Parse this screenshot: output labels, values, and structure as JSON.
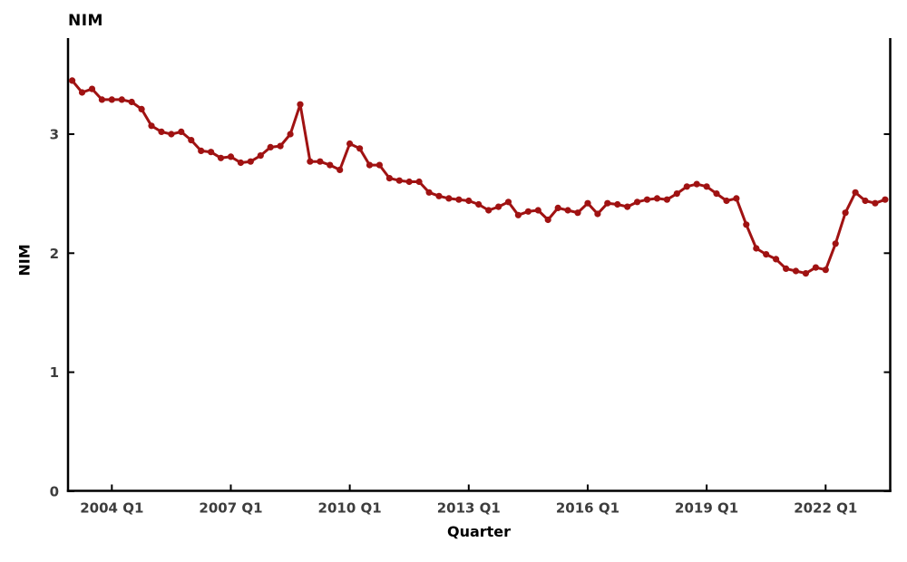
{
  "chart": {
    "title": "NIM",
    "xlabel": "Quarter",
    "ylabel": "NIM"
  },
  "chart_data": {
    "type": "line",
    "title": "NIM",
    "xlabel": "Quarter",
    "ylabel": "NIM",
    "legend": "none",
    "grid": false,
    "line_color": "#a01212",
    "marker": "circle",
    "axis_color": "#000000",
    "tick_label_color": "#3d3d3d",
    "ylim": [
      0,
      3.8
    ],
    "yticks": [
      0,
      1,
      2,
      3
    ],
    "x_tick_labels": [
      "2004 Q1",
      "2007 Q1",
      "2010 Q1",
      "2013 Q1",
      "2016 Q1",
      "2019 Q1",
      "2022 Q1"
    ],
    "x_tick_indices": [
      4,
      16,
      28,
      40,
      52,
      64,
      76
    ],
    "categories": [
      "2003 Q1",
      "2003 Q2",
      "2003 Q3",
      "2003 Q4",
      "2004 Q1",
      "2004 Q2",
      "2004 Q3",
      "2004 Q4",
      "2005 Q1",
      "2005 Q2",
      "2005 Q3",
      "2005 Q4",
      "2006 Q1",
      "2006 Q2",
      "2006 Q3",
      "2006 Q4",
      "2007 Q1",
      "2007 Q2",
      "2007 Q3",
      "2007 Q4",
      "2008 Q1",
      "2008 Q2",
      "2008 Q3",
      "2008 Q4",
      "2009 Q1",
      "2009 Q2",
      "2009 Q3",
      "2009 Q4",
      "2010 Q1",
      "2010 Q2",
      "2010 Q3",
      "2010 Q4",
      "2011 Q1",
      "2011 Q2",
      "2011 Q3",
      "2011 Q4",
      "2012 Q1",
      "2012 Q2",
      "2012 Q3",
      "2012 Q4",
      "2013 Q1",
      "2013 Q2",
      "2013 Q3",
      "2013 Q4",
      "2014 Q1",
      "2014 Q2",
      "2014 Q3",
      "2014 Q4",
      "2015 Q1",
      "2015 Q2",
      "2015 Q3",
      "2015 Q4",
      "2016 Q1",
      "2016 Q2",
      "2016 Q3",
      "2016 Q4",
      "2017 Q1",
      "2017 Q2",
      "2017 Q3",
      "2017 Q4",
      "2018 Q1",
      "2018 Q2",
      "2018 Q3",
      "2018 Q4",
      "2019 Q1",
      "2019 Q2",
      "2019 Q3",
      "2019 Q4",
      "2020 Q1",
      "2020 Q2",
      "2020 Q3",
      "2020 Q4",
      "2021 Q1",
      "2021 Q2",
      "2021 Q3",
      "2021 Q4",
      "2022 Q1",
      "2022 Q2",
      "2022 Q3",
      "2022 Q4",
      "2023 Q1",
      "2023 Q2",
      "2023 Q3"
    ],
    "values": [
      3.45,
      3.35,
      3.38,
      3.29,
      3.29,
      3.29,
      3.27,
      3.21,
      3.07,
      3.02,
      3.0,
      3.02,
      2.95,
      2.86,
      2.85,
      2.8,
      2.81,
      2.76,
      2.77,
      2.82,
      2.89,
      2.9,
      3.0,
      3.25,
      2.77,
      2.77,
      2.74,
      2.7,
      2.92,
      2.88,
      2.74,
      2.74,
      2.63,
      2.61,
      2.6,
      2.6,
      2.51,
      2.48,
      2.46,
      2.45,
      2.44,
      2.41,
      2.36,
      2.39,
      2.43,
      2.32,
      2.35,
      2.36,
      2.28,
      2.38,
      2.36,
      2.34,
      2.42,
      2.33,
      2.42,
      2.41,
      2.39,
      2.43,
      2.45,
      2.46,
      2.45,
      2.5,
      2.56,
      2.58,
      2.56,
      2.5,
      2.44,
      2.46,
      2.24,
      2.04,
      1.99,
      1.95,
      1.87,
      1.85,
      1.83,
      1.88,
      1.86,
      2.08,
      2.34,
      2.51,
      2.44,
      2.42,
      2.45
    ]
  }
}
